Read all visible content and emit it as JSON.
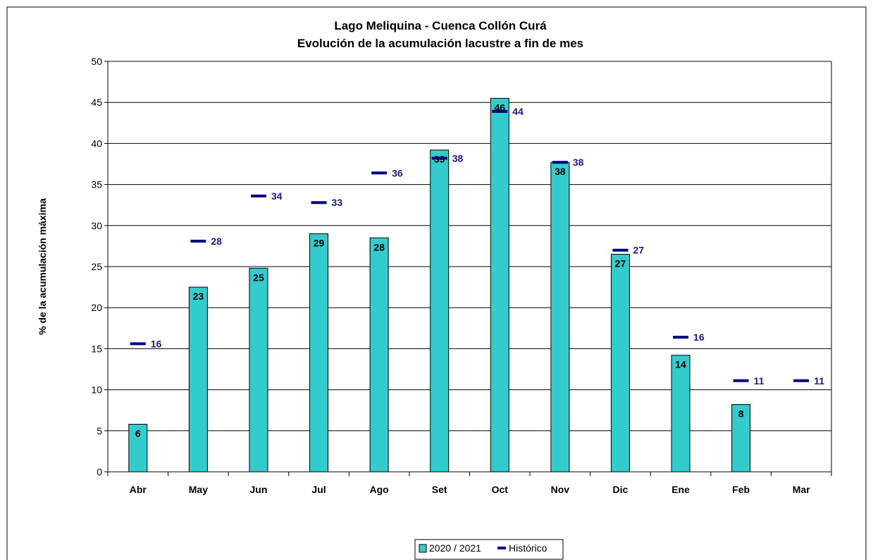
{
  "chart_data": {
    "type": "bar",
    "title": "Lago Meliquina - Cuenca Collón Curá",
    "subtitle": "Evolución de la acumulación lacustre a fin de mes",
    "ylabel": "% de la acumulación máxima",
    "xlabel": "",
    "ylim": [
      0,
      50
    ],
    "yticks": [
      0,
      5,
      10,
      15,
      20,
      25,
      30,
      35,
      40,
      45,
      50
    ],
    "grid": true,
    "legend_position": "bottom",
    "categories": [
      "Abr",
      "May",
      "Jun",
      "Jul",
      "Ago",
      "Set",
      "Oct",
      "Nov",
      "Dic",
      "Ene",
      "Feb",
      "Mar"
    ],
    "series": [
      {
        "name": "2020 / 2021",
        "kind": "bar",
        "color": "#33cccc",
        "values": [
          5.8,
          22.5,
          24.8,
          29.0,
          28.5,
          39.2,
          45.5,
          37.7,
          26.5,
          14.2,
          8.2,
          null
        ],
        "labels": [
          "6",
          "23",
          "25",
          "29",
          "28",
          "39",
          "46",
          "38",
          "27",
          "14",
          "8",
          ""
        ]
      },
      {
        "name": "Histórico",
        "kind": "marker",
        "color": "#000080",
        "values": [
          15.6,
          28.1,
          33.6,
          32.8,
          36.4,
          38.2,
          43.9,
          37.7,
          27.0,
          16.4,
          11.1,
          11.1
        ],
        "labels": [
          "16",
          "28",
          "34",
          "33",
          "36",
          "38",
          "44",
          "38",
          "27",
          "16",
          "11",
          "11"
        ]
      }
    ]
  }
}
